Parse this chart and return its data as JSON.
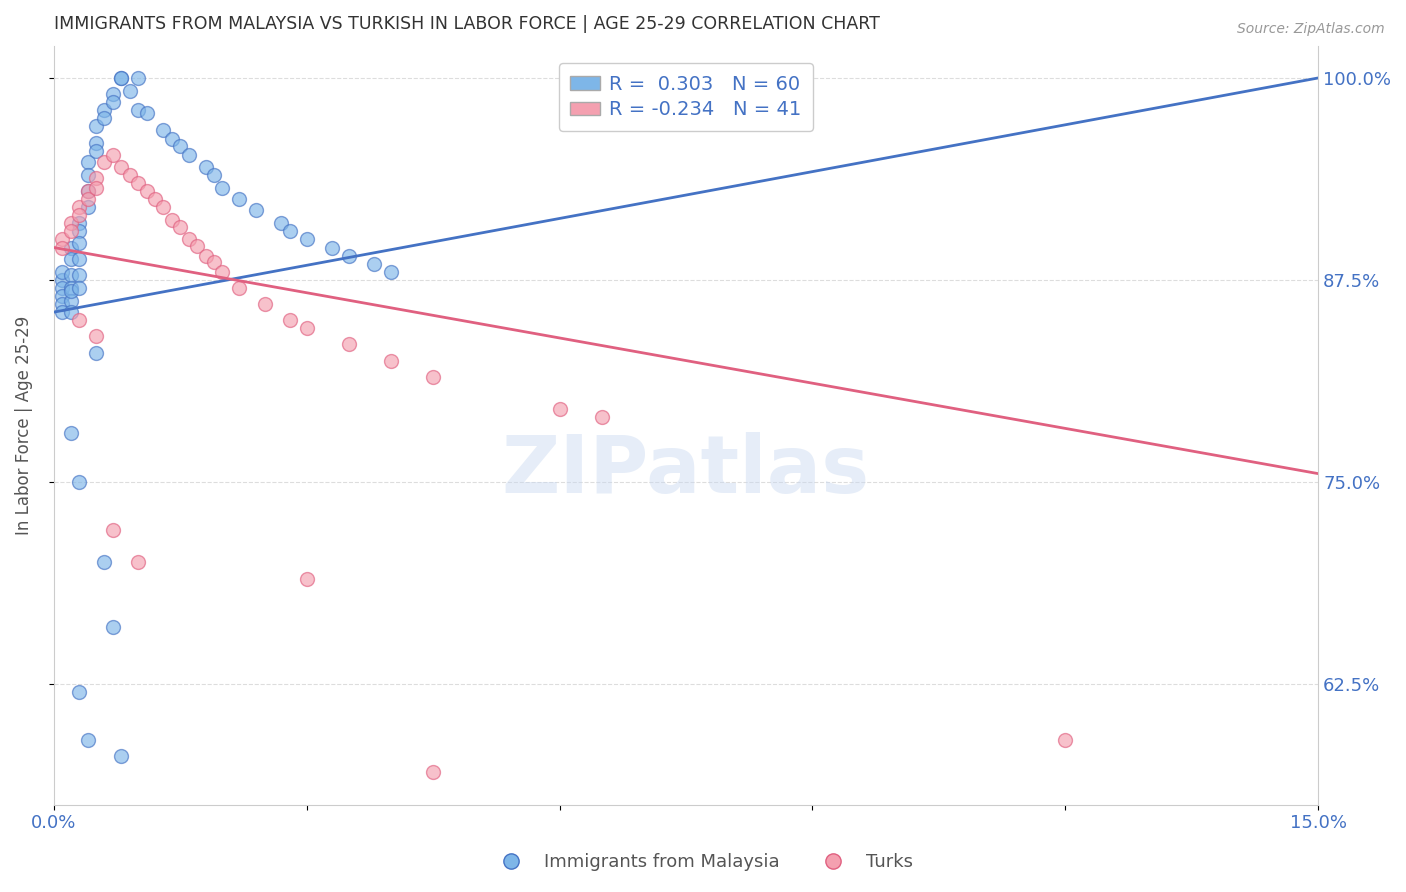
{
  "title": "IMMIGRANTS FROM MALAYSIA VS TURKISH IN LABOR FORCE | AGE 25-29 CORRELATION CHART",
  "source": "Source: ZipAtlas.com",
  "ylabel": "In Labor Force | Age 25-29",
  "xlim": [
    0.0,
    0.15
  ],
  "ylim": [
    0.55,
    1.02
  ],
  "yticks": [
    0.625,
    0.75,
    0.875,
    1.0
  ],
  "ytick_labels": [
    "62.5%",
    "75.0%",
    "87.5%",
    "100.0%"
  ],
  "malaysia_color": "#7EB6E8",
  "turks_color": "#F4A0B0",
  "malaysia_line_color": "#4472C4",
  "turks_line_color": "#E06080",
  "R_malaysia": 0.303,
  "N_malaysia": 60,
  "R_turks": -0.234,
  "N_turks": 41,
  "watermark": "ZIPatlas",
  "background_color": "#FFFFFF",
  "grid_color": "#DDDDDD",
  "title_color": "#333333",
  "ylabel_color": "#555555",
  "yticklabel_color": "#4472C4",
  "xticklabel_color": "#4472C4",
  "malaysia_line_x0": 0.0,
  "malaysia_line_y0": 0.855,
  "malaysia_line_x1": 0.15,
  "malaysia_line_y1": 1.0,
  "turks_line_x0": 0.0,
  "turks_line_y0": 0.895,
  "turks_line_x1": 0.15,
  "turks_line_y1": 0.755,
  "malaysia_pts_x": [
    0.001,
    0.001,
    0.001,
    0.001,
    0.001,
    0.001,
    0.002,
    0.002,
    0.002,
    0.002,
    0.002,
    0.002,
    0.002,
    0.003,
    0.003,
    0.003,
    0.003,
    0.003,
    0.003,
    0.004,
    0.004,
    0.004,
    0.004,
    0.005,
    0.005,
    0.005,
    0.006,
    0.006,
    0.007,
    0.007,
    0.008,
    0.008,
    0.009,
    0.01,
    0.01,
    0.011,
    0.013,
    0.014,
    0.015,
    0.016,
    0.018,
    0.019,
    0.02,
    0.022,
    0.024,
    0.027,
    0.028,
    0.03,
    0.033,
    0.035,
    0.038,
    0.04,
    0.006,
    0.007,
    0.003,
    0.004,
    0.002,
    0.003,
    0.005,
    0.008
  ],
  "malaysia_pts_y": [
    0.875,
    0.87,
    0.865,
    0.86,
    0.855,
    0.88,
    0.895,
    0.888,
    0.878,
    0.87,
    0.862,
    0.855,
    0.868,
    0.91,
    0.905,
    0.898,
    0.888,
    0.878,
    0.87,
    0.948,
    0.94,
    0.93,
    0.92,
    0.97,
    0.96,
    0.955,
    0.98,
    0.975,
    0.99,
    0.985,
    1.0,
    1.0,
    0.992,
    1.0,
    0.98,
    0.978,
    0.968,
    0.962,
    0.958,
    0.952,
    0.945,
    0.94,
    0.932,
    0.925,
    0.918,
    0.91,
    0.905,
    0.9,
    0.895,
    0.89,
    0.885,
    0.88,
    0.7,
    0.66,
    0.62,
    0.59,
    0.78,
    0.75,
    0.83,
    0.58
  ],
  "turks_pts_x": [
    0.001,
    0.001,
    0.002,
    0.002,
    0.003,
    0.003,
    0.004,
    0.004,
    0.005,
    0.005,
    0.006,
    0.007,
    0.008,
    0.009,
    0.01,
    0.011,
    0.012,
    0.013,
    0.014,
    0.015,
    0.016,
    0.017,
    0.018,
    0.019,
    0.02,
    0.022,
    0.025,
    0.028,
    0.03,
    0.035,
    0.04,
    0.045,
    0.06,
    0.065,
    0.003,
    0.005,
    0.007,
    0.01,
    0.03,
    0.045,
    0.12
  ],
  "turks_pts_y": [
    0.9,
    0.895,
    0.91,
    0.905,
    0.92,
    0.915,
    0.93,
    0.925,
    0.938,
    0.932,
    0.948,
    0.952,
    0.945,
    0.94,
    0.935,
    0.93,
    0.925,
    0.92,
    0.912,
    0.908,
    0.9,
    0.896,
    0.89,
    0.886,
    0.88,
    0.87,
    0.86,
    0.85,
    0.845,
    0.835,
    0.825,
    0.815,
    0.795,
    0.79,
    0.85,
    0.84,
    0.72,
    0.7,
    0.69,
    0.57,
    0.59
  ]
}
